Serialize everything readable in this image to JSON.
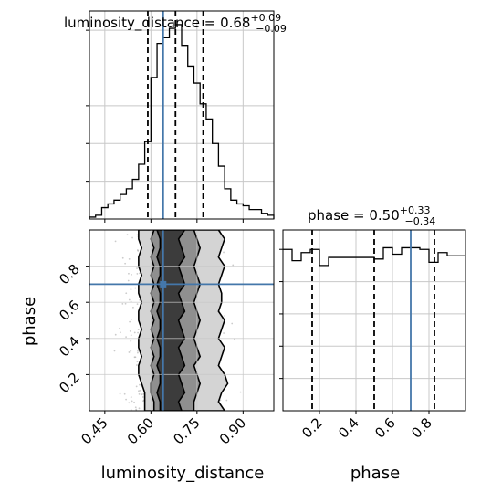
{
  "chart_data": [
    {
      "type": "histogram",
      "panel": "luminosity_distance-marginal",
      "title": {
        "param": "luminosity_distance",
        "value": "0.68",
        "plus": "+0.09",
        "minus": "−0.09"
      },
      "xlim": [
        0.4,
        1.0
      ],
      "grid": true,
      "quantiles": [
        0.59,
        0.68,
        0.77
      ],
      "truth": 0.64,
      "bin_edges": [
        0.4,
        0.42,
        0.44,
        0.46,
        0.48,
        0.5,
        0.52,
        0.54,
        0.56,
        0.58,
        0.6,
        0.62,
        0.64,
        0.66,
        0.68,
        0.7,
        0.72,
        0.74,
        0.76,
        0.78,
        0.8,
        0.82,
        0.84,
        0.86,
        0.88,
        0.9,
        0.92,
        0.94,
        0.96,
        0.98,
        1.0
      ],
      "counts": [
        0.1,
        0.2,
        0.6,
        0.8,
        1.0,
        1.3,
        1.6,
        2.1,
        2.9,
        4.1,
        7.5,
        9.3,
        9.6,
        10.1,
        10.3,
        9.2,
        8.1,
        7.2,
        6.1,
        5.3,
        4.0,
        2.8,
        1.6,
        1.0,
        0.8,
        0.7,
        0.5,
        0.5,
        0.3,
        0.2
      ],
      "color": "#000000",
      "truth_color": "#4477aa"
    },
    {
      "type": "contour",
      "panel": "phase-vs-luminosity_distance",
      "xlabel": "luminosity_distance",
      "ylabel": "phase",
      "xlim": [
        0.4,
        1.0
      ],
      "ylim": [
        0.0,
        1.0
      ],
      "xticks": [
        "0.45",
        "0.60",
        "0.75",
        "0.90"
      ],
      "xtick_values": [
        0.45,
        0.6,
        0.75,
        0.9
      ],
      "yticks": [
        "0.2",
        "0.4",
        "0.6",
        "0.8"
      ],
      "ytick_values": [
        0.2,
        0.4,
        0.6,
        0.8
      ],
      "grid": true,
      "truth": [
        0.64,
        0.7
      ],
      "contour_bands": {
        "y": [
          0.0,
          0.05,
          0.1,
          0.15,
          0.2,
          0.25,
          0.3,
          0.35,
          0.4,
          0.45,
          0.5,
          0.55,
          0.6,
          0.65,
          0.7,
          0.75,
          0.8,
          0.85,
          0.9,
          0.95,
          1.0
        ],
        "outer": [
          [
            0.58,
            0.84
          ],
          [
            0.58,
            0.82
          ],
          [
            0.58,
            0.83
          ],
          [
            0.57,
            0.85
          ],
          [
            0.56,
            0.84
          ],
          [
            0.56,
            0.82
          ],
          [
            0.57,
            0.83
          ],
          [
            0.56,
            0.84
          ],
          [
            0.56,
            0.82
          ],
          [
            0.57,
            0.83
          ],
          [
            0.56,
            0.84
          ],
          [
            0.56,
            0.82
          ],
          [
            0.57,
            0.83
          ],
          [
            0.56,
            0.83
          ],
          [
            0.56,
            0.82
          ],
          [
            0.57,
            0.83
          ],
          [
            0.56,
            0.84
          ],
          [
            0.56,
            0.82
          ],
          [
            0.57,
            0.83
          ],
          [
            0.56,
            0.84
          ],
          [
            0.56,
            0.82
          ]
        ],
        "inner": [
          [
            0.61,
            0.74
          ],
          [
            0.61,
            0.74
          ],
          [
            0.6,
            0.75
          ],
          [
            0.6,
            0.76
          ],
          [
            0.61,
            0.75
          ],
          [
            0.6,
            0.74
          ],
          [
            0.61,
            0.76
          ],
          [
            0.6,
            0.75
          ],
          [
            0.61,
            0.74
          ],
          [
            0.6,
            0.75
          ],
          [
            0.61,
            0.76
          ],
          [
            0.6,
            0.75
          ],
          [
            0.61,
            0.74
          ],
          [
            0.6,
            0.75
          ],
          [
            0.61,
            0.76
          ],
          [
            0.6,
            0.75
          ],
          [
            0.61,
            0.74
          ],
          [
            0.6,
            0.75
          ],
          [
            0.61,
            0.76
          ],
          [
            0.6,
            0.75
          ],
          [
            0.61,
            0.74
          ]
        ],
        "core": [
          [
            0.63,
            0.7
          ],
          [
            0.63,
            0.69
          ],
          [
            0.62,
            0.71
          ],
          [
            0.63,
            0.7
          ],
          [
            0.63,
            0.69
          ],
          [
            0.62,
            0.71
          ],
          [
            0.63,
            0.7
          ],
          [
            0.63,
            0.69
          ],
          [
            0.62,
            0.71
          ],
          [
            0.63,
            0.7
          ],
          [
            0.63,
            0.69
          ],
          [
            0.62,
            0.71
          ],
          [
            0.63,
            0.7
          ],
          [
            0.63,
            0.69
          ],
          [
            0.62,
            0.71
          ],
          [
            0.63,
            0.7
          ],
          [
            0.63,
            0.69
          ],
          [
            0.62,
            0.71
          ],
          [
            0.63,
            0.7
          ],
          [
            0.63,
            0.69
          ],
          [
            0.62,
            0.71
          ]
        ]
      },
      "truth_color": "#4477aa"
    },
    {
      "type": "histogram",
      "panel": "phase-marginal",
      "title": {
        "param": "phase",
        "value": "0.50",
        "plus": "+0.33",
        "minus": "−0.34"
      },
      "xlabel": "phase",
      "xlim": [
        0.0,
        1.0
      ],
      "xticks": [
        "0.2",
        "0.4",
        "0.6",
        "0.8"
      ],
      "xtick_values": [
        0.2,
        0.4,
        0.6,
        0.8
      ],
      "grid": true,
      "quantiles": [
        0.16,
        0.5,
        0.83
      ],
      "truth": 0.7,
      "bin_edges": [
        0.0,
        0.05,
        0.1,
        0.15,
        0.2,
        0.25,
        0.3,
        0.35,
        0.4,
        0.45,
        0.5,
        0.55,
        0.6,
        0.65,
        0.7,
        0.75,
        0.8,
        0.85,
        0.9,
        0.95,
        1.0
      ],
      "counts": [
        1.0,
        0.93,
        0.98,
        1.0,
        0.9,
        0.95,
        0.95,
        0.95,
        0.95,
        0.95,
        0.94,
        1.01,
        0.97,
        1.01,
        1.01,
        1.0,
        0.92,
        0.98,
        0.96,
        0.96
      ],
      "color": "#000000",
      "truth_color": "#4477aa"
    }
  ]
}
